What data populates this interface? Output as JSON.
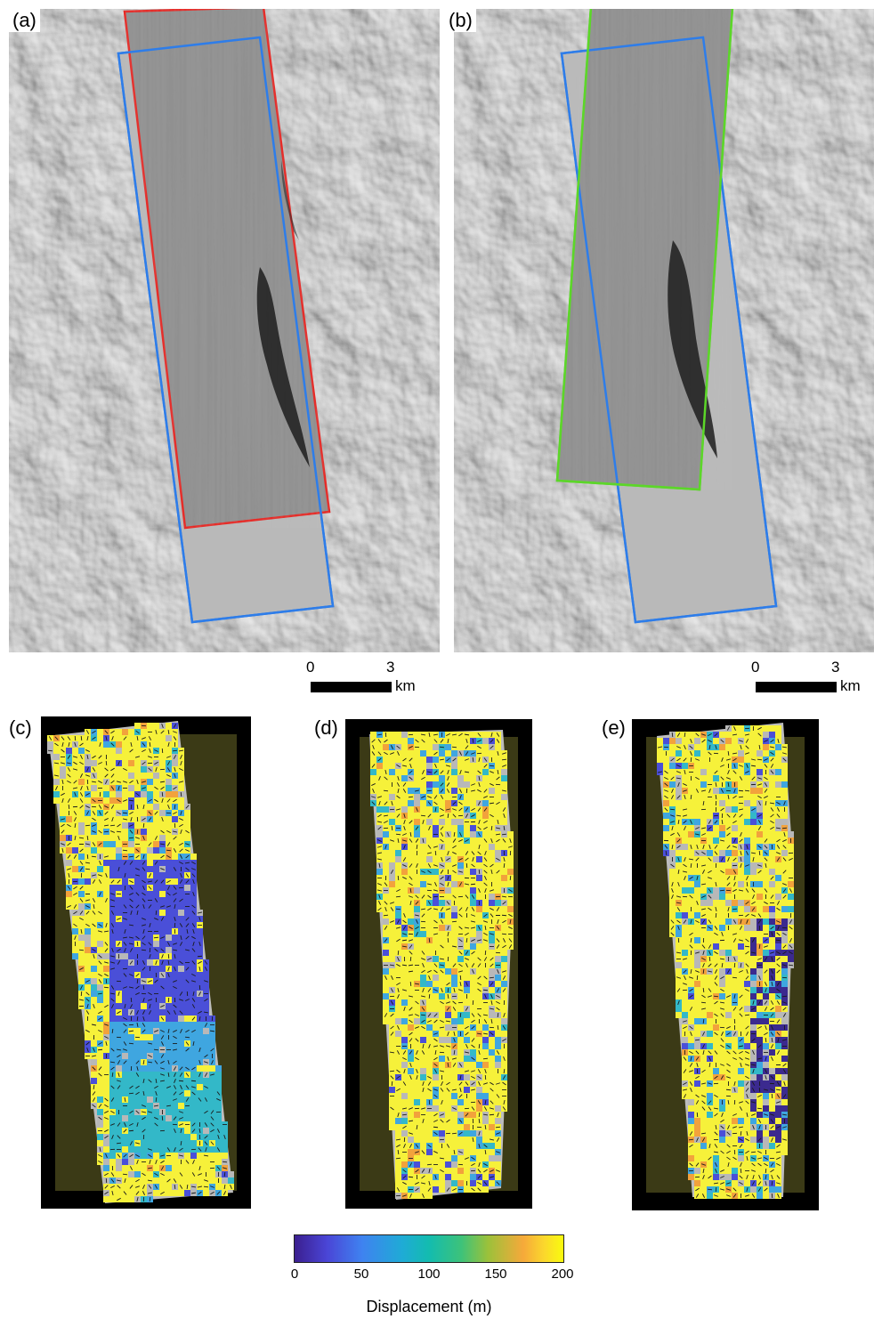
{
  "panels": {
    "a": {
      "label": "(a)"
    },
    "b": {
      "label": "(b)"
    },
    "c": {
      "label": "(c)"
    },
    "d": {
      "label": "(d)"
    },
    "e": {
      "label": "(e)"
    }
  },
  "scale_bar": {
    "tick_start": "0",
    "tick_end": "3",
    "unit": "km"
  },
  "colorbar": {
    "title": "Displacement (m)",
    "ticks": [
      "0",
      "50",
      "100",
      "150",
      "200"
    ],
    "range": [
      0,
      200
    ],
    "colormap": [
      "#3b1f8f",
      "#3f82f0",
      "#13bcaf",
      "#f6a93a",
      "#f9fb0e"
    ]
  },
  "colors": {
    "footprint_red": "#e8211d",
    "footprint_blue": "#2e7de9",
    "footprint_green": "#5cd629",
    "background": "#ffffff"
  }
}
